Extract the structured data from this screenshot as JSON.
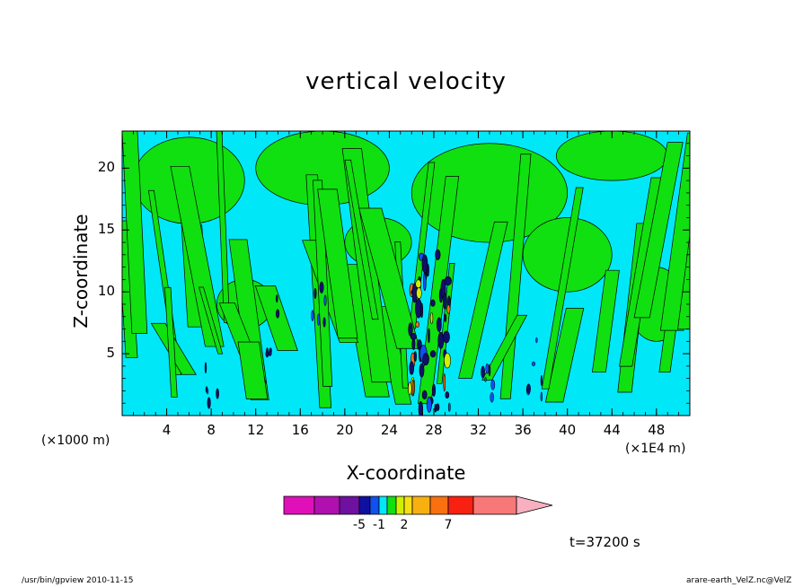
{
  "chart_data": {
    "type": "heatmap",
    "title": "vertical velocity",
    "xlabel": "X-coordinate",
    "ylabel": "Z-coordinate",
    "x_unit_left": "(×1000 m)",
    "x_unit_right": "(×1E4 m)",
    "xlim": [
      0,
      51
    ],
    "ylim": [
      0,
      23
    ],
    "x_ticks": [
      "4",
      "8",
      "12",
      "16",
      "20",
      "24",
      "28",
      "32",
      "36",
      "40",
      "44",
      "48"
    ],
    "y_ticks": [
      "5",
      "10",
      "15",
      "20"
    ],
    "colorbar": {
      "labels": [
        "-5",
        "-1",
        "2",
        "7"
      ],
      "colors": [
        "#e010b8",
        "#b010b0",
        "#7010a0",
        "#1010a0",
        "#1050f0",
        "#00e8f8",
        "#10e010",
        "#d0f000",
        "#f8e010",
        "#f8b010",
        "#f87010",
        "#f82010",
        "#f87878",
        "#f8b0c0"
      ],
      "background": "#00e8f8",
      "secondary": "#10e010"
    },
    "annotation": "t=37200 s"
  },
  "footer": {
    "left": "/usr/bin/gpview   2010-11-15",
    "right": "arare-earth_VelZ.nc@VelZ"
  }
}
